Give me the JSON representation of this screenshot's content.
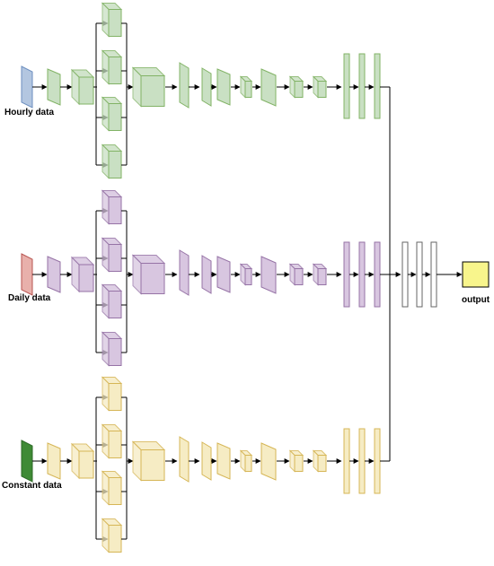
{
  "labels": {
    "hourly": "Hourly data",
    "daily": "Daily data",
    "constant": "Constant data",
    "output": "output"
  },
  "colors": {
    "hourly_input": "#b3c6e0",
    "daily_input": "#e8b0ab",
    "constant_input": "#3e8a35",
    "output_box": "#f8f58c",
    "green_layer": "#c9e0c3",
    "purple_layer": "#d8c6e0",
    "yellow_layer": "#f6ecc4",
    "edge": "#000000"
  }
}
